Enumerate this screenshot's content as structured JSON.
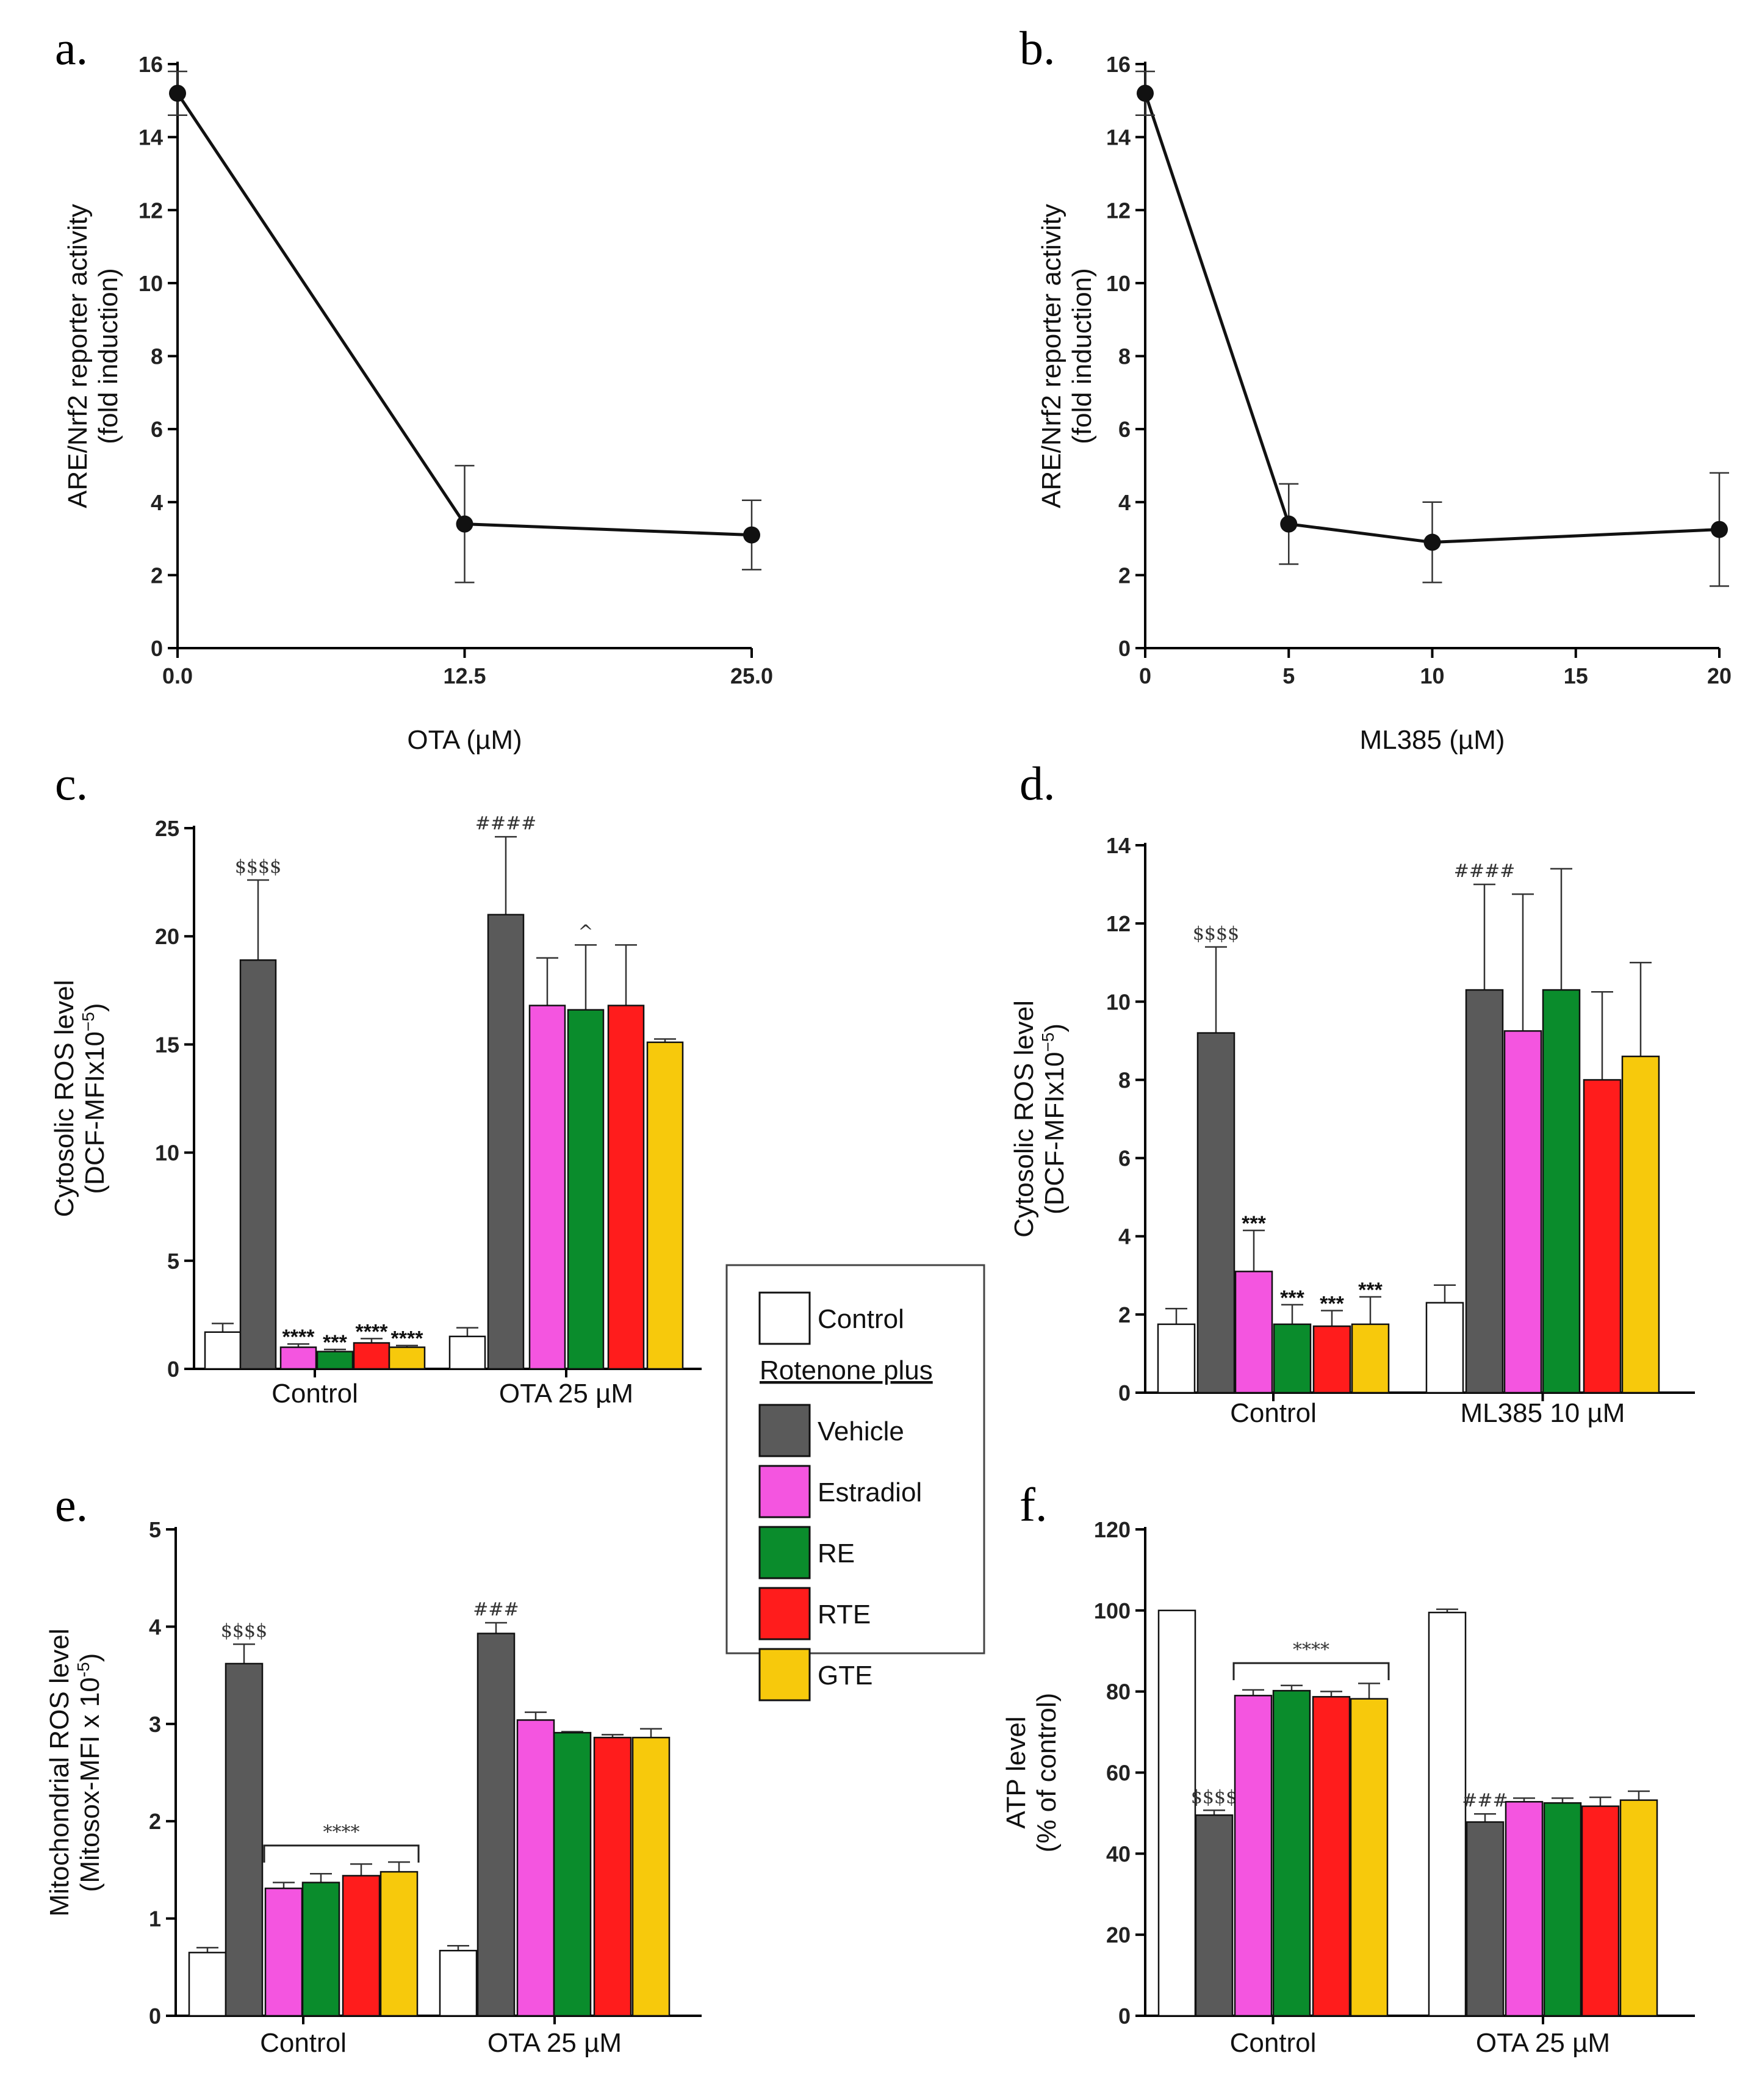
{
  "chart_data": [
    {
      "id": "a",
      "panel_label": "a.",
      "type": "line",
      "x": [
        0,
        12.5,
        25
      ],
      "y": [
        15.2,
        3.4,
        3.1
      ],
      "err": [
        0.6,
        1.6,
        0.95
      ],
      "xticks": [
        "0.0",
        "12.5",
        "25.0"
      ],
      "xlim": [
        0,
        25
      ],
      "yticks": [
        "0",
        "2",
        "4",
        "6",
        "8",
        "10",
        "12",
        "14",
        "16"
      ],
      "ylim": [
        0,
        16
      ],
      "xlabel": "OTA (µM)",
      "ylabel": [
        "ARE/Nrf2 reporter activity",
        "(fold induction)"
      ]
    },
    {
      "id": "b",
      "panel_label": "b.",
      "type": "line",
      "x": [
        0,
        5,
        10,
        20
      ],
      "y": [
        15.2,
        3.4,
        2.9,
        3.25
      ],
      "err": [
        0.6,
        1.1,
        1.1,
        1.55
      ],
      "xticks": [
        "0",
        "5",
        "10",
        "15",
        "20"
      ],
      "xlim": [
        0,
        20
      ],
      "yticks": [
        "0",
        "2",
        "4",
        "6",
        "8",
        "10",
        "12",
        "14",
        "16"
      ],
      "ylim": [
        0,
        16
      ],
      "xlabel": "ML385 (µM)",
      "ylabel": [
        "ARE/Nrf2 reporter activity",
        "(fold induction)"
      ]
    },
    {
      "id": "c",
      "panel_label": "c.",
      "type": "bar",
      "categories": [
        "Control",
        "OTA 25 µM"
      ],
      "series_names": [
        "Control",
        "Vehicle",
        "Estradiol",
        "RE",
        "RTE",
        "GTE"
      ],
      "values": [
        [
          1.7,
          18.9,
          1.0,
          0.8,
          1.2,
          1.0
        ],
        [
          1.5,
          21.0,
          16.8,
          16.6,
          16.8,
          15.1
        ]
      ],
      "errors": [
        [
          0.4,
          3.7,
          0.15,
          0.1,
          0.2,
          0.08
        ],
        [
          0.4,
          3.6,
          2.2,
          3.0,
          2.8,
          0.15
        ]
      ],
      "annotations": [
        [
          "",
          "$$$$",
          "****",
          "***",
          "****",
          "****"
        ],
        [
          "",
          "####",
          "",
          "^",
          "",
          ""
        ]
      ],
      "yticks": [
        "0",
        "5",
        "10",
        "15",
        "20",
        "25"
      ],
      "ylim": [
        0,
        25
      ],
      "ylabel": [
        "Cytosolic ROS level",
        "(DCF-MFIx10",
        "−5",
        ")"
      ]
    },
    {
      "id": "d",
      "panel_label": "d.",
      "type": "bar",
      "categories": [
        "Control",
        "ML385 10 µM"
      ],
      "series_names": [
        "Control",
        "Vehicle",
        "Estradiol",
        "RE",
        "RTE",
        "GTE"
      ],
      "values": [
        [
          1.75,
          9.2,
          3.1,
          1.75,
          1.7,
          1.75
        ],
        [
          2.3,
          10.3,
          9.25,
          10.3,
          8.0,
          8.6
        ]
      ],
      "errors": [
        [
          0.4,
          2.2,
          1.05,
          0.5,
          0.4,
          0.7
        ],
        [
          0.45,
          2.7,
          3.5,
          3.1,
          2.25,
          2.4
        ]
      ],
      "annotations": [
        [
          "",
          "$$$$",
          "***",
          "***",
          "***",
          "***"
        ],
        [
          "",
          "####",
          "",
          "",
          "",
          ""
        ]
      ],
      "yticks": [
        "0",
        "2",
        "4",
        "6",
        "8",
        "10",
        "12",
        "14"
      ],
      "ylim": [
        0,
        14
      ],
      "ylabel": [
        "Cytosolic ROS level",
        "(DCF-MFIx10",
        "−5",
        ")"
      ]
    },
    {
      "id": "e",
      "panel_label": "e.",
      "type": "bar",
      "categories": [
        "Control",
        "OTA 25 µM"
      ],
      "series_names": [
        "Control",
        "Vehicle",
        "Estradiol",
        "RE",
        "RTE",
        "GTE"
      ],
      "values": [
        [
          0.65,
          3.62,
          1.31,
          1.37,
          1.44,
          1.48
        ],
        [
          0.67,
          3.93,
          3.04,
          2.91,
          2.86,
          2.86
        ]
      ],
      "errors": [
        [
          0.05,
          0.2,
          0.06,
          0.09,
          0.12,
          0.1
        ],
        [
          0.05,
          0.11,
          0.08,
          0.01,
          0.03,
          0.09
        ]
      ],
      "annotations": [
        [
          "",
          "$$$$",
          "",
          "",
          "",
          ""
        ],
        [
          "",
          "###",
          "",
          "",
          "",
          ""
        ]
      ],
      "bracket": {
        "group": 0,
        "from": 2,
        "to": 5,
        "label": "****",
        "value": 1.75
      },
      "yticks": [
        "0",
        "1",
        "2",
        "3",
        "4",
        "5"
      ],
      "ylim": [
        0,
        5
      ],
      "ylabel": [
        "Mitochondrial ROS level",
        "(Mitosox-MFI x 10",
        "-5",
        ")"
      ]
    },
    {
      "id": "f",
      "panel_label": "f.",
      "type": "bar",
      "categories": [
        "Control",
        "OTA 25 µM"
      ],
      "series_names": [
        "Control",
        "Vehicle",
        "Estradiol",
        "RE",
        "RTE",
        "GTE"
      ],
      "values": [
        [
          100,
          49.5,
          79,
          80.2,
          78.7,
          78.2
        ],
        [
          99.5,
          47.8,
          52.8,
          52.5,
          51.7,
          53.2
        ]
      ],
      "errors": [
        [
          0,
          1.2,
          1.4,
          1.3,
          1.3,
          3.8
        ],
        [
          0.8,
          2.0,
          0.9,
          1.2,
          2.2,
          2.2
        ]
      ],
      "annotations": [
        [
          "",
          "$$$$",
          "",
          "",
          "",
          ""
        ],
        [
          "",
          "###",
          "",
          "",
          "",
          ""
        ]
      ],
      "bracket": {
        "group": 0,
        "from": 2,
        "to": 5,
        "label": "****",
        "value": 87
      },
      "yticks": [
        "0",
        "20",
        "40",
        "60",
        "80",
        "100",
        "120"
      ],
      "ylim": [
        0,
        120
      ],
      "ylabel": [
        "ATP level",
        "(% of control)"
      ]
    }
  ],
  "legend": {
    "items": [
      {
        "label": "Control",
        "color": "#ffffff"
      },
      {
        "label": "Vehicle",
        "color": "#5a5a5a"
      },
      {
        "label": "Estradiol",
        "color": "#f455e0"
      },
      {
        "label": "RE",
        "color": "#0a8c2c"
      },
      {
        "label": "RTE",
        "color": "#ff1c1c"
      },
      {
        "label": "GTE",
        "color": "#f7c90c"
      }
    ],
    "subheading": "Rotenone plus"
  },
  "colors": {
    "line": "#111111",
    "axis": "#000000"
  }
}
